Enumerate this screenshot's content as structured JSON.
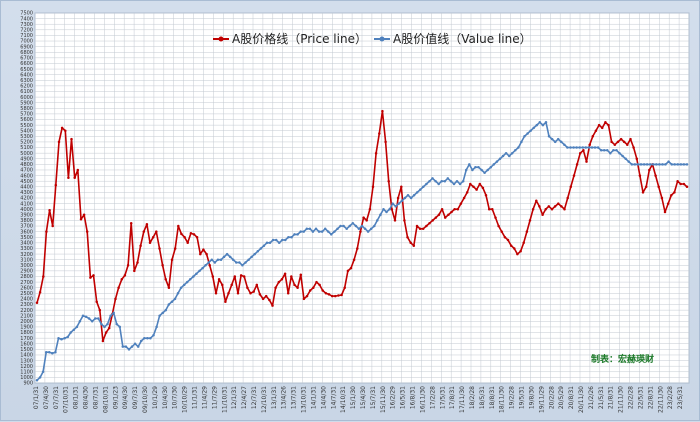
{
  "chart_data": {
    "type": "line",
    "credit": "制表：宏赫瑛财",
    "ylim": [
      900,
      7500
    ],
    "y_step": 100,
    "grid": true,
    "legend_position": "top-center",
    "x_tick_labels": [
      "07/1/31",
      "07/4/30",
      "07/7/31",
      "07/10/31",
      "08/1/31",
      "08/4/30",
      "08/7/31",
      "08/10/31",
      "09/1/23",
      "09/4/30",
      "09/7/31",
      "09/10/30",
      "10/1/29",
      "10/4/30",
      "10/7/30",
      "10/10/29",
      "11/1/31",
      "11/4/29",
      "11/7/29",
      "11/10/31",
      "12/1/31",
      "12/4/27",
      "12/7/31",
      "12/10/31",
      "13/1/31",
      "13/4/26",
      "13/7/31",
      "13/10/31",
      "14/1/31",
      "14/4/30",
      "14/7/31",
      "14/10/31",
      "15/1/30",
      "15/4/30",
      "15/7/31",
      "15/11/30",
      "16/2/29",
      "16/5/31",
      "16/8/31",
      "16/11/30",
      "17/2/28",
      "17/5/31",
      "17/8/31",
      "17/11/30",
      "18/2/28",
      "18/5/31",
      "18/8/31",
      "18/11/30",
      "19/2/28",
      "19/5/31",
      "19/8/30",
      "19/11/29",
      "20/2/28",
      "20/5/29",
      "20/8/31",
      "20/11/30",
      "21/2/26",
      "21/5/31",
      "21/8/31",
      "21/11/30",
      "22/2/28",
      "22/5/31",
      "22/8/31",
      "22/11/30",
      "23/2/28",
      "23/5/31"
    ],
    "series": [
      {
        "name": "A股价格线（Price line）",
        "color": "#c00000",
        "values": [
          2330,
          2520,
          2800,
          3600,
          3980,
          3700,
          4430,
          5200,
          5450,
          5400,
          4560,
          5250,
          4560,
          4700,
          3820,
          3900,
          3600,
          2780,
          2820,
          2350,
          2200,
          1650,
          1800,
          1880,
          2130,
          2400,
          2600,
          2750,
          2820,
          3000,
          3750,
          2900,
          3050,
          3350,
          3600,
          3730,
          3400,
          3500,
          3600,
          3300,
          3000,
          2750,
          2600,
          3100,
          3300,
          3700,
          3560,
          3500,
          3400,
          3570,
          3550,
          3500,
          3200,
          3280,
          3200,
          3000,
          2800,
          2500,
          2750,
          2650,
          2350,
          2500,
          2650,
          2800,
          2500,
          2820,
          2800,
          2600,
          2500,
          2530,
          2650,
          2480,
          2400,
          2450,
          2380,
          2280,
          2600,
          2700,
          2750,
          2850,
          2500,
          2800,
          2650,
          2600,
          2830,
          2400,
          2450,
          2550,
          2600,
          2700,
          2650,
          2550,
          2500,
          2480,
          2450,
          2450,
          2460,
          2470,
          2600,
          2900,
          2950,
          3100,
          3300,
          3600,
          3850,
          3800,
          4000,
          4400,
          5000,
          5350,
          5750,
          5200,
          4500,
          4000,
          3800,
          4200,
          4400,
          3800,
          3500,
          3400,
          3350,
          3700,
          3650,
          3650,
          3700,
          3750,
          3800,
          3850,
          3900,
          4000,
          3850,
          3900,
          3950,
          4000,
          4000,
          4100,
          4200,
          4300,
          4450,
          4400,
          4350,
          4450,
          4380,
          4250,
          4000,
          4000,
          3850,
          3700,
          3600,
          3500,
          3450,
          3350,
          3300,
          3200,
          3250,
          3400,
          3600,
          3800,
          4000,
          4150,
          4050,
          3900,
          4000,
          4050,
          4000,
          4050,
          4100,
          4050,
          4000,
          4200,
          4400,
          4600,
          4800,
          5000,
          5050,
          4850,
          5150,
          5300,
          5400,
          5500,
          5450,
          5550,
          5500,
          5200,
          5150,
          5200,
          5250,
          5200,
          5150,
          5250,
          5100,
          4900,
          4600,
          4300,
          4400,
          4700,
          4800,
          4600,
          4400,
          4200,
          3950,
          4100,
          4250,
          4300,
          4500,
          4450,
          4450,
          4400
        ]
      },
      {
        "name": "A股价值线（Value line）",
        "color": "#4f81bd",
        "values": [
          950,
          1000,
          1100,
          1450,
          1450,
          1430,
          1450,
          1700,
          1680,
          1700,
          1720,
          1800,
          1850,
          1900,
          2000,
          2100,
          2080,
          2050,
          2000,
          2050,
          2050,
          1950,
          1900,
          1950,
          2100,
          2150,
          1950,
          1900,
          1550,
          1550,
          1500,
          1550,
          1600,
          1550,
          1650,
          1700,
          1700,
          1700,
          1750,
          1900,
          2100,
          2150,
          2200,
          2300,
          2350,
          2400,
          2500,
          2600,
          2650,
          2700,
          2750,
          2800,
          2850,
          2900,
          2950,
          3000,
          3050,
          3100,
          3050,
          3100,
          3100,
          3150,
          3200,
          3150,
          3100,
          3050,
          3050,
          3000,
          3050,
          3100,
          3150,
          3200,
          3250,
          3300,
          3350,
          3400,
          3400,
          3450,
          3450,
          3400,
          3450,
          3450,
          3500,
          3500,
          3550,
          3550,
          3600,
          3600,
          3650,
          3650,
          3600,
          3650,
          3600,
          3600,
          3650,
          3600,
          3550,
          3600,
          3650,
          3700,
          3700,
          3650,
          3700,
          3750,
          3700,
          3650,
          3700,
          3650,
          3600,
          3650,
          3700,
          3800,
          3900,
          4000,
          3950,
          4000,
          4100,
          4050,
          4100,
          4150,
          4200,
          4250,
          4200,
          4250,
          4300,
          4350,
          4400,
          4450,
          4500,
          4550,
          4500,
          4450,
          4500,
          4500,
          4550,
          4500,
          4450,
          4500,
          4450,
          4500,
          4700,
          4800,
          4700,
          4750,
          4750,
          4700,
          4650,
          4700,
          4750,
          4800,
          4850,
          4900,
          4950,
          5000,
          4950,
          5000,
          5050,
          5100,
          5200,
          5300,
          5350,
          5400,
          5450,
          5500,
          5550,
          5500,
          5550,
          5300,
          5250,
          5200,
          5250,
          5200,
          5150,
          5100,
          5100,
          5100,
          5100,
          5100,
          5100,
          5100,
          5100,
          5100,
          5100,
          5100,
          5050,
          5050,
          5050,
          5000,
          5050,
          5050,
          5000,
          4950,
          4900,
          4850,
          4800,
          4800,
          4800,
          4800,
          4800,
          4800,
          4800,
          4800,
          4800,
          4800,
          4800,
          4800,
          4850,
          4800,
          4800,
          4800,
          4800,
          4800,
          4800
        ]
      }
    ]
  }
}
